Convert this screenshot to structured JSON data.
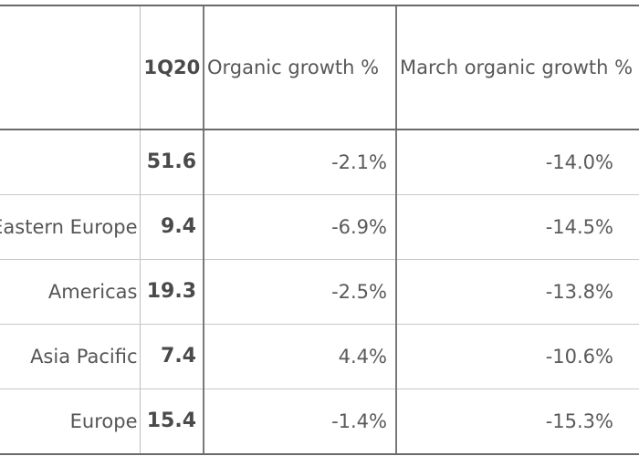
{
  "table": {
    "headers": {
      "region": "",
      "q": "1Q20",
      "organic": "Organic growth %",
      "march": "March organic growth %"
    },
    "rows": [
      {
        "region": "",
        "q": "51.6",
        "organic": "-2.1%",
        "march": "-14.0%"
      },
      {
        "region": "Eastern Europe",
        "q": "9.4",
        "organic": "-6.9%",
        "march": "-14.5%"
      },
      {
        "region": "Americas",
        "q": "19.3",
        "organic": "-2.5%",
        "march": "-13.8%"
      },
      {
        "region": "Asia Pacific",
        "q": "7.4",
        "organic": "4.4%",
        "march": "-10.6%"
      },
      {
        "region": "Europe",
        "q": "15.4",
        "organic": "-1.4%",
        "march": "-15.3%"
      }
    ]
  },
  "colors": {
    "text": "#4a4a4a",
    "rule": "#6a6a6a",
    "gridline": "#c8c8c8",
    "background": "#ffffff"
  }
}
